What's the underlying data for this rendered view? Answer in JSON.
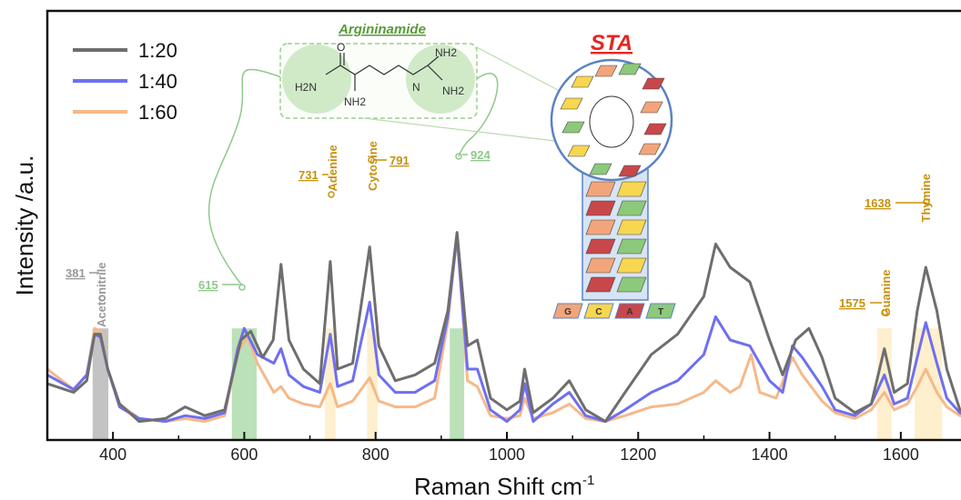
{
  "chart_data": {
    "type": "line",
    "xlabel": "Raman Shift cm",
    "xlabel_sup": "-1",
    "ylabel": "Intensity /a.u.",
    "xlim": [
      300,
      1700
    ],
    "ylim": [
      0,
      1
    ],
    "x_ticks": [
      400,
      600,
      800,
      1000,
      1200,
      1400,
      1600
    ],
    "x_tick_labels": [
      "400",
      "600",
      "800",
      "1000",
      "1200",
      "1400",
      "1600"
    ],
    "y_ticks_shown": false,
    "grid": false,
    "legend_position": "top-left",
    "series": [
      {
        "name": "1:20",
        "color": "#6e6e6e",
        "points": [
          [
            300,
            0.15
          ],
          [
            340,
            0.12
          ],
          [
            360,
            0.16
          ],
          [
            372,
            0.32
          ],
          [
            381,
            0.32
          ],
          [
            392,
            0.2
          ],
          [
            410,
            0.08
          ],
          [
            440,
            0.02
          ],
          [
            480,
            0.03
          ],
          [
            510,
            0.07
          ],
          [
            540,
            0.04
          ],
          [
            570,
            0.06
          ],
          [
            595,
            0.3
          ],
          [
            610,
            0.33
          ],
          [
            628,
            0.24
          ],
          [
            644,
            0.3
          ],
          [
            656,
            0.56
          ],
          [
            668,
            0.3
          ],
          [
            690,
            0.2
          ],
          [
            715,
            0.15
          ],
          [
            731,
            0.57
          ],
          [
            742,
            0.2
          ],
          [
            765,
            0.22
          ],
          [
            791,
            0.62
          ],
          [
            805,
            0.28
          ],
          [
            830,
            0.16
          ],
          [
            860,
            0.18
          ],
          [
            890,
            0.22
          ],
          [
            910,
            0.4
          ],
          [
            924,
            0.67
          ],
          [
            940,
            0.28
          ],
          [
            955,
            0.3
          ],
          [
            975,
            0.1
          ],
          [
            1000,
            0.06
          ],
          [
            1020,
            0.09
          ],
          [
            1027,
            0.2
          ],
          [
            1040,
            0.05
          ],
          [
            1070,
            0.1
          ],
          [
            1095,
            0.16
          ],
          [
            1120,
            0.06
          ],
          [
            1150,
            0.02
          ],
          [
            1180,
            0.12
          ],
          [
            1220,
            0.25
          ],
          [
            1260,
            0.32
          ],
          [
            1300,
            0.45
          ],
          [
            1318,
            0.63
          ],
          [
            1340,
            0.55
          ],
          [
            1370,
            0.5
          ],
          [
            1400,
            0.3
          ],
          [
            1420,
            0.18
          ],
          [
            1440,
            0.3
          ],
          [
            1460,
            0.34
          ],
          [
            1480,
            0.24
          ],
          [
            1500,
            0.1
          ],
          [
            1530,
            0.05
          ],
          [
            1555,
            0.08
          ],
          [
            1575,
            0.27
          ],
          [
            1590,
            0.12
          ],
          [
            1610,
            0.15
          ],
          [
            1625,
            0.4
          ],
          [
            1638,
            0.55
          ],
          [
            1655,
            0.4
          ],
          [
            1670,
            0.2
          ],
          [
            1690,
            0.06
          ],
          [
            1700,
            0.05
          ]
        ]
      },
      {
        "name": "1:40",
        "color": "#6f6ff0",
        "points": [
          [
            300,
            0.18
          ],
          [
            340,
            0.13
          ],
          [
            360,
            0.18
          ],
          [
            372,
            0.32
          ],
          [
            381,
            0.31
          ],
          [
            392,
            0.2
          ],
          [
            410,
            0.07
          ],
          [
            440,
            0.03
          ],
          [
            480,
            0.02
          ],
          [
            510,
            0.04
          ],
          [
            540,
            0.03
          ],
          [
            570,
            0.05
          ],
          [
            590,
            0.27
          ],
          [
            600,
            0.34
          ],
          [
            620,
            0.25
          ],
          [
            645,
            0.22
          ],
          [
            656,
            0.27
          ],
          [
            668,
            0.18
          ],
          [
            690,
            0.14
          ],
          [
            715,
            0.12
          ],
          [
            731,
            0.32
          ],
          [
            742,
            0.14
          ],
          [
            765,
            0.16
          ],
          [
            791,
            0.43
          ],
          [
            805,
            0.18
          ],
          [
            830,
            0.12
          ],
          [
            860,
            0.12
          ],
          [
            890,
            0.16
          ],
          [
            910,
            0.38
          ],
          [
            924,
            0.66
          ],
          [
            940,
            0.2
          ],
          [
            955,
            0.2
          ],
          [
            975,
            0.06
          ],
          [
            1000,
            0.02
          ],
          [
            1020,
            0.06
          ],
          [
            1027,
            0.15
          ],
          [
            1040,
            0.02
          ],
          [
            1070,
            0.08
          ],
          [
            1095,
            0.12
          ],
          [
            1120,
            0.04
          ],
          [
            1150,
            0.02
          ],
          [
            1180,
            0.06
          ],
          [
            1220,
            0.12
          ],
          [
            1260,
            0.16
          ],
          [
            1300,
            0.25
          ],
          [
            1318,
            0.38
          ],
          [
            1340,
            0.3
          ],
          [
            1370,
            0.28
          ],
          [
            1400,
            0.16
          ],
          [
            1420,
            0.12
          ],
          [
            1435,
            0.28
          ],
          [
            1450,
            0.24
          ],
          [
            1480,
            0.14
          ],
          [
            1500,
            0.06
          ],
          [
            1530,
            0.04
          ],
          [
            1555,
            0.08
          ],
          [
            1575,
            0.18
          ],
          [
            1590,
            0.08
          ],
          [
            1610,
            0.1
          ],
          [
            1625,
            0.24
          ],
          [
            1638,
            0.36
          ],
          [
            1655,
            0.22
          ],
          [
            1670,
            0.1
          ],
          [
            1690,
            0.05
          ],
          [
            1700,
            0.04
          ]
        ]
      },
      {
        "name": "1:60",
        "color": "#f5b98a",
        "points": [
          [
            300,
            0.2
          ],
          [
            340,
            0.13
          ],
          [
            360,
            0.18
          ],
          [
            372,
            0.34
          ],
          [
            381,
            0.33
          ],
          [
            392,
            0.2
          ],
          [
            410,
            0.08
          ],
          [
            440,
            0.03
          ],
          [
            480,
            0.02
          ],
          [
            510,
            0.03
          ],
          [
            540,
            0.02
          ],
          [
            570,
            0.04
          ],
          [
            590,
            0.26
          ],
          [
            605,
            0.31
          ],
          [
            620,
            0.22
          ],
          [
            645,
            0.12
          ],
          [
            656,
            0.14
          ],
          [
            668,
            0.1
          ],
          [
            690,
            0.08
          ],
          [
            715,
            0.07
          ],
          [
            731,
            0.15
          ],
          [
            742,
            0.07
          ],
          [
            765,
            0.09
          ],
          [
            791,
            0.17
          ],
          [
            805,
            0.09
          ],
          [
            830,
            0.07
          ],
          [
            860,
            0.07
          ],
          [
            890,
            0.1
          ],
          [
            910,
            0.36
          ],
          [
            924,
            0.66
          ],
          [
            940,
            0.16
          ],
          [
            955,
            0.14
          ],
          [
            975,
            0.04
          ],
          [
            1000,
            0.03
          ],
          [
            1020,
            0.04
          ],
          [
            1027,
            0.1
          ],
          [
            1040,
            0.03
          ],
          [
            1070,
            0.05
          ],
          [
            1095,
            0.08
          ],
          [
            1120,
            0.03
          ],
          [
            1150,
            0.02
          ],
          [
            1180,
            0.04
          ],
          [
            1220,
            0.07
          ],
          [
            1260,
            0.08
          ],
          [
            1300,
            0.12
          ],
          [
            1318,
            0.16
          ],
          [
            1340,
            0.12
          ],
          [
            1355,
            0.14
          ],
          [
            1372,
            0.25
          ],
          [
            1385,
            0.12
          ],
          [
            1410,
            0.1
          ],
          [
            1435,
            0.24
          ],
          [
            1450,
            0.18
          ],
          [
            1480,
            0.09
          ],
          [
            1500,
            0.05
          ],
          [
            1530,
            0.03
          ],
          [
            1555,
            0.06
          ],
          [
            1575,
            0.12
          ],
          [
            1590,
            0.06
          ],
          [
            1610,
            0.08
          ],
          [
            1625,
            0.14
          ],
          [
            1638,
            0.2
          ],
          [
            1655,
            0.12
          ],
          [
            1670,
            0.07
          ],
          [
            1690,
            0.04
          ],
          [
            1700,
            0.04
          ]
        ]
      }
    ],
    "bands": [
      {
        "x": 381,
        "width": 24,
        "color": "#aaaaaa",
        "label_value": "381",
        "label_name": "Acetonitrile",
        "label_color": "#999999"
      },
      {
        "x": 600,
        "width": 38,
        "color": "#9ed49a",
        "label_value": "615",
        "label_name": "",
        "label_color": "#8dc98a"
      },
      {
        "x": 731,
        "width": 16,
        "color": "#fde8b8",
        "label_value": "731",
        "label_name": "Adenine",
        "label_color": "#c8900a"
      },
      {
        "x": 795,
        "width": 16,
        "color": "#fde8b8",
        "label_value": "791",
        "label_name": "Cytosine",
        "label_color": "#c8900a"
      },
      {
        "x": 924,
        "width": 22,
        "color": "#9ed49a",
        "label_value": "924",
        "label_name": "",
        "label_color": "#8dc98a"
      },
      {
        "x": 1575,
        "width": 22,
        "color": "#fde8b8",
        "label_value": "1575",
        "label_name": "Guanine",
        "label_color": "#c8900a"
      },
      {
        "x": 1642,
        "width": 42,
        "color": "#fde8b8",
        "label_value": "1638",
        "label_name": "Thymine",
        "label_color": "#c8900a"
      }
    ]
  },
  "inset": {
    "title": "Argininamide",
    "title_color": "#5a9a3a",
    "sta_label": "STA",
    "sta_color": "#e52520",
    "structure_labels": [
      "O",
      "H2N",
      "NH2",
      "NH2",
      "N",
      "NH2"
    ],
    "bases": [
      "G",
      "C",
      "A",
      "T"
    ],
    "base_colors": [
      "#f2a57a",
      "#f7d650",
      "#c8474a",
      "#8cc97a"
    ]
  }
}
